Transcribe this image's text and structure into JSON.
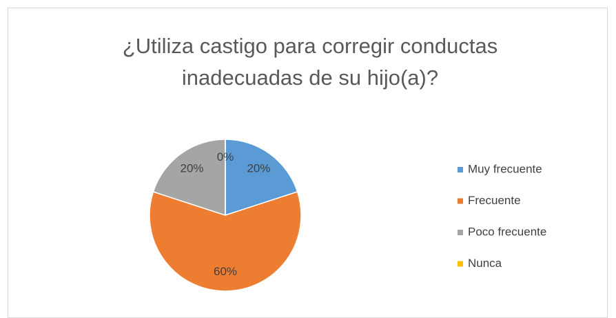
{
  "chart_data": {
    "type": "pie",
    "title": "¿Utiliza castigo para corregir conductas inadecuadas de su hijo(a)?",
    "categories": [
      "Muy frecuente",
      "Frecuente",
      "Poco frecuente",
      "Nunca"
    ],
    "values": [
      20,
      60,
      20,
      0
    ],
    "value_labels": [
      "20%",
      "60%",
      "20%",
      "0%"
    ],
    "colors": [
      "#5b9bd5",
      "#ed7d31",
      "#a5a5a5",
      "#ffc000"
    ],
    "legend": "right"
  }
}
